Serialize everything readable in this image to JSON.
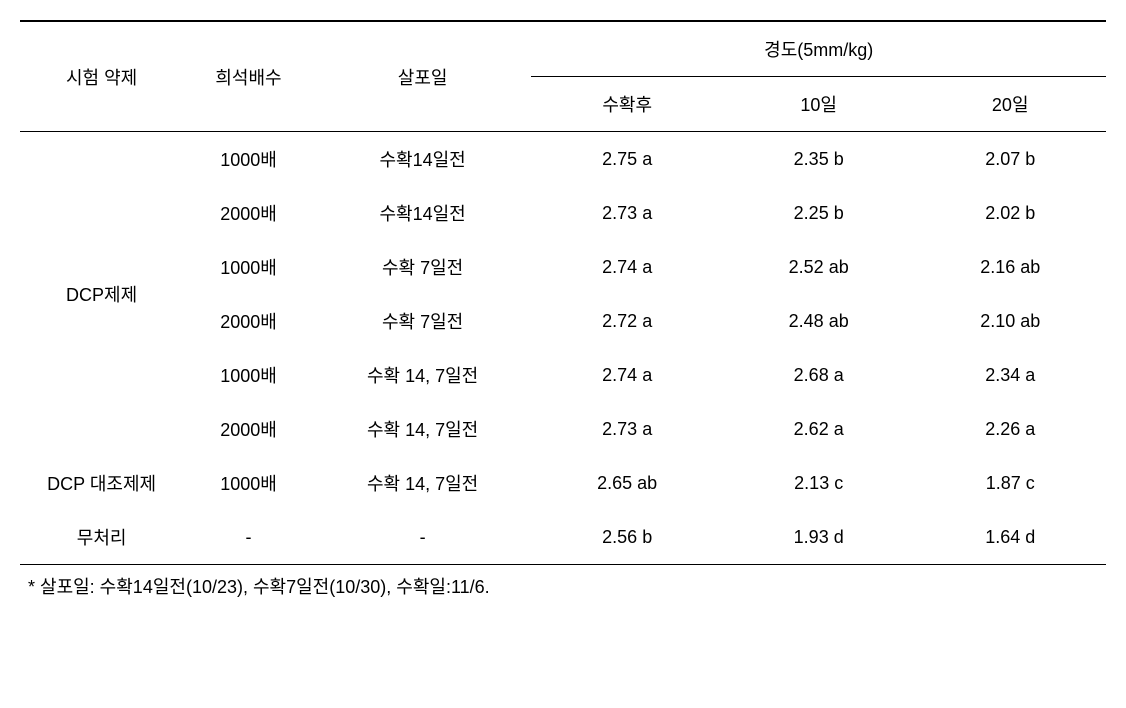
{
  "table": {
    "headers": {
      "agent": "시험 약제",
      "dilution": "희석배수",
      "spray_day": "살포일",
      "hardness_group": "경도(5mm/kg)",
      "hardness_sub": [
        "수확후",
        "10일",
        "20일"
      ]
    },
    "agent_labels": {
      "dcp": "DCP제제",
      "dcp_control": "DCP 대조제제",
      "untreated": "무처리"
    },
    "rows": [
      {
        "dilution": "1000배",
        "spray": "수확14일전",
        "h0": "2.75 a",
        "h10": "2.35 b",
        "h20": "2.07 b"
      },
      {
        "dilution": "2000배",
        "spray": "수확14일전",
        "h0": "2.73 a",
        "h10": "2.25 b",
        "h20": "2.02 b"
      },
      {
        "dilution": "1000배",
        "spray": "수확 7일전",
        "h0": "2.74 a",
        "h10": "2.52 ab",
        "h20": "2.16 ab"
      },
      {
        "dilution": "2000배",
        "spray": "수확 7일전",
        "h0": "2.72 a",
        "h10": "2.48 ab",
        "h20": "2.10 ab"
      },
      {
        "dilution": "1000배",
        "spray": "수확 14, 7일전",
        "h0": "2.74 a",
        "h10": "2.68 a",
        "h20": "2.34 a"
      },
      {
        "dilution": "2000배",
        "spray": "수확 14, 7일전",
        "h0": "2.73 a",
        "h10": "2.62 a",
        "h20": "2.26 a"
      },
      {
        "dilution": "1000배",
        "spray": "수확 14, 7일전",
        "h0": "2.65 ab",
        "h10": "2.13 c",
        "h20": "1.87 c"
      },
      {
        "dilution": "-",
        "spray": "-",
        "h0": "2.56 b",
        "h10": "1.93 d",
        "h20": "1.64 d"
      }
    ],
    "footnote": "* 살포일: 수확14일전(10/23), 수확7일전(10/30), 수확일:11/6."
  }
}
